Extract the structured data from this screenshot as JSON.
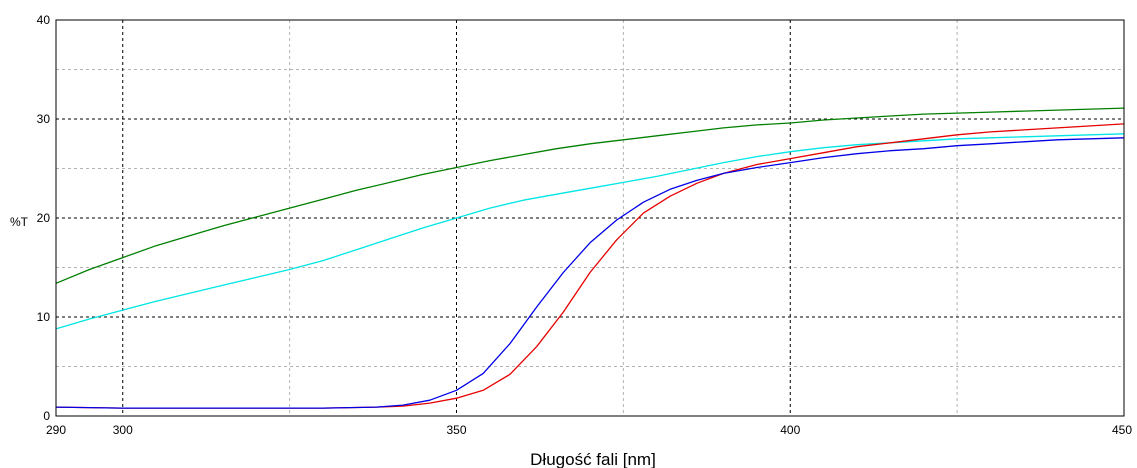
{
  "chart_data": {
    "type": "line",
    "title": "",
    "xlabel": "Długość fali [nm]",
    "ylabel": "%T",
    "xlim": [
      290,
      450
    ],
    "ylim": [
      0,
      40
    ],
    "x_ticks": [
      290,
      300,
      350,
      400,
      450
    ],
    "y_ticks": [
      0,
      10,
      20,
      30,
      40
    ],
    "major_grid_x": [
      300,
      350,
      400
    ],
    "minor_grid_x": [
      325,
      375,
      425
    ],
    "major_grid_y": [
      10,
      20,
      30
    ],
    "minor_grid_y": [
      5,
      15,
      25,
      35
    ],
    "grid": true,
    "legend": "none",
    "series": [
      {
        "color": "#008000",
        "x": [
          290,
          295,
          300,
          305,
          310,
          315,
          320,
          325,
          330,
          335,
          340,
          345,
          350,
          355,
          360,
          365,
          370,
          375,
          380,
          385,
          390,
          395,
          400,
          405,
          410,
          415,
          420,
          425,
          430,
          435,
          440,
          445,
          450
        ],
        "y": [
          13.4,
          14.8,
          16.0,
          17.2,
          18.2,
          19.2,
          20.1,
          21.0,
          21.9,
          22.8,
          23.6,
          24.4,
          25.1,
          25.8,
          26.4,
          27.0,
          27.5,
          27.9,
          28.3,
          28.7,
          29.1,
          29.4,
          29.6,
          29.9,
          30.1,
          30.3,
          30.5,
          30.6,
          30.7,
          30.8,
          30.9,
          31.0,
          31.1
        ]
      },
      {
        "color": "#00e5e5",
        "x": [
          290,
          295,
          300,
          305,
          310,
          315,
          320,
          325,
          330,
          335,
          340,
          345,
          350,
          355,
          360,
          365,
          370,
          375,
          380,
          385,
          390,
          395,
          400,
          405,
          410,
          415,
          420,
          425,
          430,
          435,
          440,
          445,
          450
        ],
        "y": [
          8.8,
          9.8,
          10.7,
          11.6,
          12.4,
          13.2,
          14.0,
          14.8,
          15.7,
          16.8,
          17.9,
          19.0,
          20.0,
          21.0,
          21.8,
          22.4,
          23.0,
          23.6,
          24.2,
          24.9,
          25.6,
          26.2,
          26.7,
          27.1,
          27.4,
          27.6,
          27.8,
          28.0,
          28.1,
          28.2,
          28.3,
          28.4,
          28.5
        ]
      },
      {
        "color": "#e60000",
        "x": [
          290,
          300,
          310,
          320,
          330,
          338,
          342,
          346,
          350,
          354,
          358,
          362,
          366,
          370,
          374,
          378,
          382,
          386,
          390,
          395,
          400,
          405,
          410,
          415,
          420,
          425,
          430,
          435,
          440,
          445,
          450
        ],
        "y": [
          0.9,
          0.8,
          0.8,
          0.8,
          0.8,
          0.9,
          1.0,
          1.3,
          1.8,
          2.6,
          4.2,
          7.0,
          10.5,
          14.5,
          17.8,
          20.5,
          22.2,
          23.5,
          24.5,
          25.4,
          26.0,
          26.6,
          27.2,
          27.6,
          28.0,
          28.4,
          28.7,
          28.9,
          29.1,
          29.3,
          29.5
        ]
      },
      {
        "color": "#0000e6",
        "x": [
          290,
          300,
          310,
          320,
          330,
          338,
          342,
          346,
          350,
          354,
          358,
          362,
          366,
          370,
          374,
          378,
          382,
          386,
          390,
          395,
          400,
          405,
          410,
          415,
          420,
          425,
          430,
          435,
          440,
          445,
          450
        ],
        "y": [
          0.9,
          0.8,
          0.8,
          0.8,
          0.8,
          0.9,
          1.1,
          1.6,
          2.6,
          4.3,
          7.3,
          11.0,
          14.5,
          17.5,
          19.8,
          21.6,
          22.9,
          23.8,
          24.5,
          25.1,
          25.6,
          26.1,
          26.5,
          26.8,
          27.0,
          27.3,
          27.5,
          27.7,
          27.9,
          28.0,
          28.1
        ]
      }
    ]
  }
}
